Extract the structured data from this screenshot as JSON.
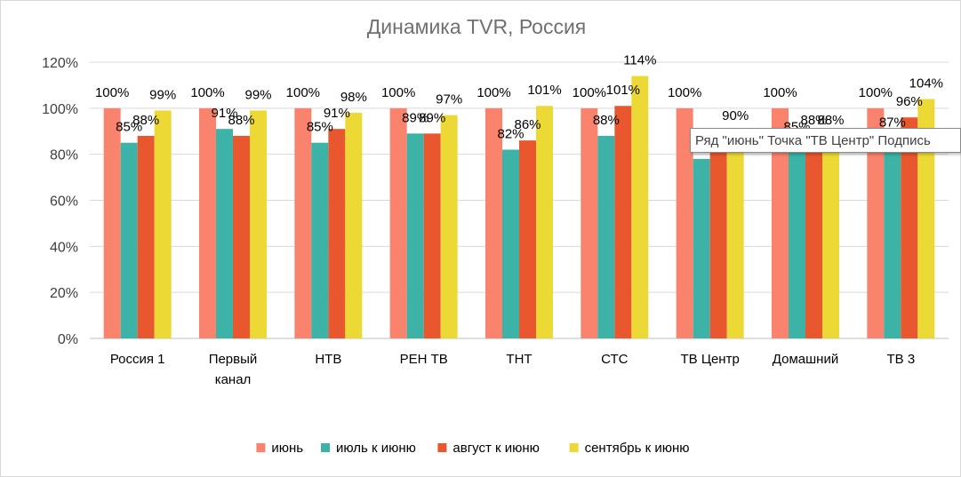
{
  "chart_data": {
    "type": "bar",
    "title": "Динамика TVR, Россия",
    "categories": [
      "Россия 1",
      "Первый канал",
      "НТВ",
      "РЕН ТВ",
      "ТНТ",
      "СТС",
      "ТВ Центр",
      "Домашний",
      "ТВ 3"
    ],
    "category_lines": [
      [
        "Россия 1"
      ],
      [
        "Первый",
        "канал"
      ],
      [
        "НТВ"
      ],
      [
        "РЕН ТВ"
      ],
      [
        "ТНТ"
      ],
      [
        "СТС"
      ],
      [
        "ТВ Центр"
      ],
      [
        "Домашний"
      ],
      [
        "ТВ 3"
      ]
    ],
    "series": [
      {
        "name": "июнь",
        "color": "#F9836C",
        "values": [
          100,
          100,
          100,
          100,
          100,
          100,
          100,
          100,
          100
        ],
        "labels": [
          "100%",
          "100%",
          "100%",
          "100%",
          "100%",
          "100%",
          "100%",
          "100%",
          "100%"
        ]
      },
      {
        "name": "июль к июню",
        "color": "#3CB3A6",
        "values": [
          85,
          91,
          85,
          89,
          82,
          88,
          78,
          85,
          87
        ],
        "labels": [
          "85%",
          "91%",
          "85%",
          "89%",
          "82%",
          "88%",
          "",
          "85%",
          "87%"
        ]
      },
      {
        "name": "август к июню",
        "color": "#E9572E",
        "values": [
          88,
          88,
          91,
          89,
          86,
          101,
          84,
          88,
          96
        ],
        "labels": [
          "88%",
          "88%",
          "91%",
          "89%",
          "86%",
          "101%",
          "",
          "88%",
          "96%"
        ]
      },
      {
        "name": "сентябрь к июню",
        "color": "#EDD936",
        "values": [
          99,
          99,
          98,
          97,
          101,
          114,
          90,
          88,
          104
        ],
        "labels": [
          "99%",
          "99%",
          "98%",
          "97%",
          "101%",
          "114%",
          "90%",
          "88%",
          "104%"
        ]
      }
    ],
    "y_ticks": [
      "0%",
      "20%",
      "40%",
      "60%",
      "80%",
      "100%",
      "120%"
    ],
    "ylim": [
      0,
      120
    ],
    "grid": true,
    "legend_position": "bottom"
  },
  "tooltip": {
    "text": "Ряд \"июнь\" Точка \"ТВ Центр\" Подпись"
  }
}
